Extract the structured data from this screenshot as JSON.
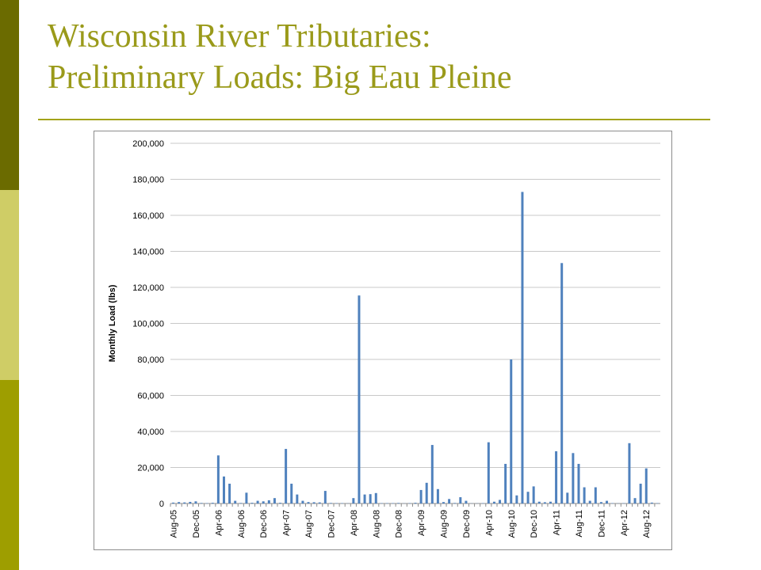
{
  "slide": {
    "title_line1": "Wisconsin River Tributaries:",
    "title_line2": "Preliminary Loads: Big Eau Pleine"
  },
  "colors": {
    "title": "#9a9a1a",
    "bars": "#4f81bd",
    "sidebar": [
      "#6b6b00",
      "#cfcd66",
      "#9e9e00"
    ]
  },
  "chart_data": {
    "type": "bar",
    "title": "",
    "xlabel": "",
    "ylabel": "Monthly Load (lbs)",
    "ylim": [
      0,
      200000
    ],
    "yticks": [
      0,
      20000,
      40000,
      60000,
      80000,
      100000,
      120000,
      140000,
      160000,
      180000,
      200000
    ],
    "ytick_labels": [
      "0",
      "20,000",
      "40,000",
      "60,000",
      "80,000",
      "100,000",
      "120,000",
      "140,000",
      "160,000",
      "180,000",
      "200,000"
    ],
    "x_tick_labels": [
      "Aug-05",
      "Dec-05",
      "Apr-06",
      "Aug-06",
      "Dec-06",
      "Apr-07",
      "Aug-07",
      "Dec-07",
      "Apr-08",
      "Aug-08",
      "Dec-08",
      "Apr-09",
      "Aug-09",
      "Dec-09",
      "Apr-10",
      "Aug-10",
      "Dec-10",
      "Apr-11",
      "Aug-11",
      "Dec-11",
      "Apr-12",
      "Aug-12"
    ],
    "grid": true,
    "legend": "none",
    "categories": [
      "Aug-05",
      "Sep-05",
      "Oct-05",
      "Nov-05",
      "Dec-05",
      "Jan-06",
      "Feb-06",
      "Mar-06",
      "Apr-06",
      "May-06",
      "Jun-06",
      "Jul-06",
      "Aug-06",
      "Sep-06",
      "Oct-06",
      "Nov-06",
      "Dec-06",
      "Jan-07",
      "Feb-07",
      "Mar-07",
      "Apr-07",
      "May-07",
      "Jun-07",
      "Jul-07",
      "Aug-07",
      "Sep-07",
      "Oct-07",
      "Nov-07",
      "Dec-07",
      "Jan-08",
      "Feb-08",
      "Mar-08",
      "Apr-08",
      "May-08",
      "Jun-08",
      "Jul-08",
      "Aug-08",
      "Sep-08",
      "Oct-08",
      "Nov-08",
      "Dec-08",
      "Jan-09",
      "Feb-09",
      "Mar-09",
      "Apr-09",
      "May-09",
      "Jun-09",
      "Jul-09",
      "Aug-09",
      "Sep-09",
      "Oct-09",
      "Nov-09",
      "Dec-09",
      "Jan-10",
      "Feb-10",
      "Mar-10",
      "Apr-10",
      "May-10",
      "Jun-10",
      "Jul-10",
      "Aug-10",
      "Sep-10",
      "Oct-10",
      "Nov-10",
      "Dec-10",
      "Jan-11",
      "Feb-11",
      "Mar-11",
      "Apr-11",
      "May-11",
      "Jun-11",
      "Jul-11",
      "Aug-11",
      "Sep-11",
      "Oct-11",
      "Nov-11",
      "Dec-11",
      "Jan-12",
      "Feb-12",
      "Mar-12",
      "Apr-12",
      "May-12",
      "Jun-12",
      "Jul-12",
      "Aug-12",
      "Sep-12",
      "Oct-12"
    ],
    "values": [
      500,
      800,
      600,
      900,
      1200,
      300,
      200,
      400,
      26700,
      15000,
      11000,
      1500,
      300,
      6000,
      400,
      1500,
      1200,
      1800,
      3000,
      400,
      30300,
      11000,
      5000,
      1500,
      800,
      700,
      600,
      7000,
      300,
      200,
      200,
      100,
      3000,
      115500,
      5000,
      5200,
      5800,
      200,
      200,
      200,
      300,
      100,
      200,
      400,
      7500,
      11500,
      32500,
      8000,
      800,
      2500,
      300,
      3500,
      1500,
      100,
      100,
      200,
      34000,
      1000,
      2000,
      22000,
      80000,
      4500,
      173000,
      6500,
      9500,
      1000,
      700,
      1000,
      29000,
      133500,
      6000,
      28000,
      22000,
      9000,
      1500,
      9000,
      800,
      1500,
      200,
      100,
      200,
      33500,
      3000,
      11000,
      19500,
      500,
      200
    ]
  }
}
